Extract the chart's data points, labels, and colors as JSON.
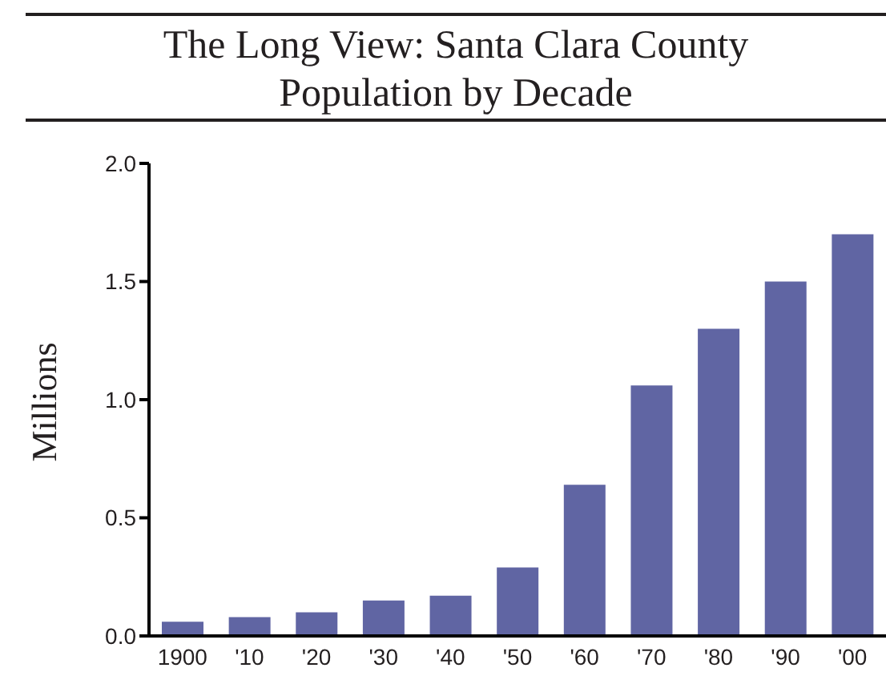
{
  "chart_data": {
    "type": "bar",
    "title": "The Long View: Santa Clara County\nPopulation by Decade",
    "ylabel": "Millions",
    "categories": [
      "1900",
      "'10",
      "'20",
      "'30",
      "'40",
      "'50",
      "'60",
      "'70",
      "'80",
      "'90",
      "'00"
    ],
    "values": [
      0.06,
      0.08,
      0.1,
      0.15,
      0.17,
      0.29,
      0.64,
      1.06,
      1.3,
      1.5,
      1.7
    ],
    "color": "#6065a3",
    "ylim": [
      0,
      2
    ],
    "yticks": [
      {
        "value": 0,
        "label": "0.0"
      },
      {
        "value": 0.5,
        "label": "0.5"
      },
      {
        "value": 1,
        "label": "1.0"
      },
      {
        "value": 1.5,
        "label": "1.5"
      },
      {
        "value": 2,
        "label": "2.0"
      }
    ],
    "grid": false
  }
}
